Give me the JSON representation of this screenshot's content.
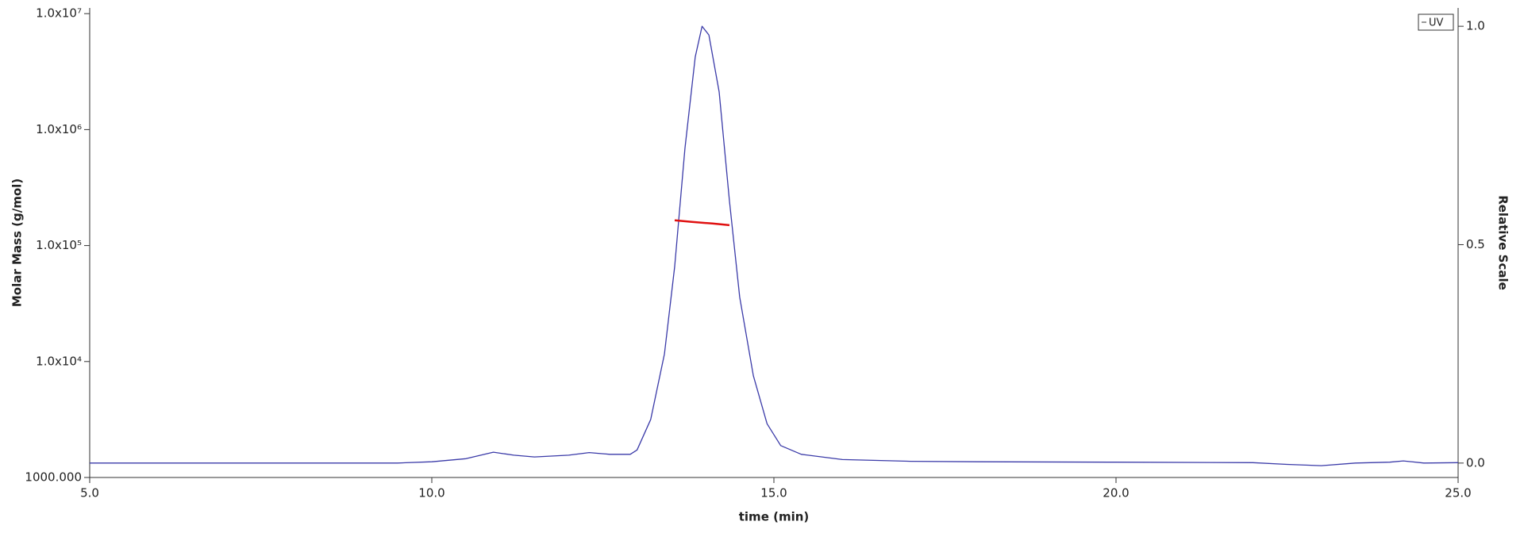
{
  "chart_data": {
    "type": "line",
    "xlabel": "time (min)",
    "ylabel": "Molar Mass (g/mol)",
    "y2label": "Relative Scale",
    "xlim": [
      5,
      25
    ],
    "xticks": [
      {
        "value": 5,
        "label": "5.0"
      },
      {
        "value": 10,
        "label": "10.0"
      },
      {
        "value": 15,
        "label": "15.0"
      },
      {
        "value": 20,
        "label": "20.0"
      },
      {
        "value": 25,
        "label": "25.0"
      }
    ],
    "ylim": [
      1000,
      11200000
    ],
    "ylog": true,
    "yticks": [
      {
        "value": 1000,
        "label": "1000.000"
      },
      {
        "value": 10000,
        "label": "1.0x10⁴"
      },
      {
        "value": 100000,
        "label": "1.0x10⁵"
      },
      {
        "value": 1000000,
        "label": "1.0x10⁶"
      },
      {
        "value": 10000000,
        "label": "1.0x10⁷"
      }
    ],
    "y2lim": [
      -0.033,
      1.042
    ],
    "y2ticks": [
      {
        "value": 0,
        "label": "0.0"
      },
      {
        "value": 0.5,
        "label": "0.5"
      },
      {
        "value": 1,
        "label": "1.0"
      }
    ],
    "legend": "upper right",
    "series": [
      {
        "name": "UV",
        "color": "#3a3aa8",
        "axis": "y2",
        "x": [
          5,
          9.5,
          10,
          10.5,
          10.9,
          11.2,
          11.5,
          12,
          12.3,
          12.6,
          12.9,
          13,
          13.2,
          13.4,
          13.55,
          13.7,
          13.85,
          13.95,
          14.05,
          14.2,
          14.35,
          14.5,
          14.7,
          14.9,
          15.1,
          15.4,
          16,
          17,
          18,
          20,
          22,
          22.5,
          23,
          23.5,
          24,
          24.2,
          24.5,
          25
        ],
        "values": [
          0,
          0,
          0.003,
          0.01,
          0.025,
          0.018,
          0.014,
          0.018,
          0.024,
          0.02,
          0.02,
          0.03,
          0.1,
          0.25,
          0.45,
          0.72,
          0.93,
          1.0,
          0.98,
          0.85,
          0.6,
          0.38,
          0.2,
          0.09,
          0.04,
          0.02,
          0.008,
          0.004,
          0.003,
          0.002,
          0.001,
          -0.003,
          -0.006,
          0,
          0.002,
          0.005,
          0,
          0.001
        ]
      },
      {
        "color": "#e01010",
        "x": [
          13.55,
          13.8,
          14.1,
          14.35
        ],
        "values": [
          165000,
          160000,
          155000,
          150000
        ]
      }
    ]
  }
}
